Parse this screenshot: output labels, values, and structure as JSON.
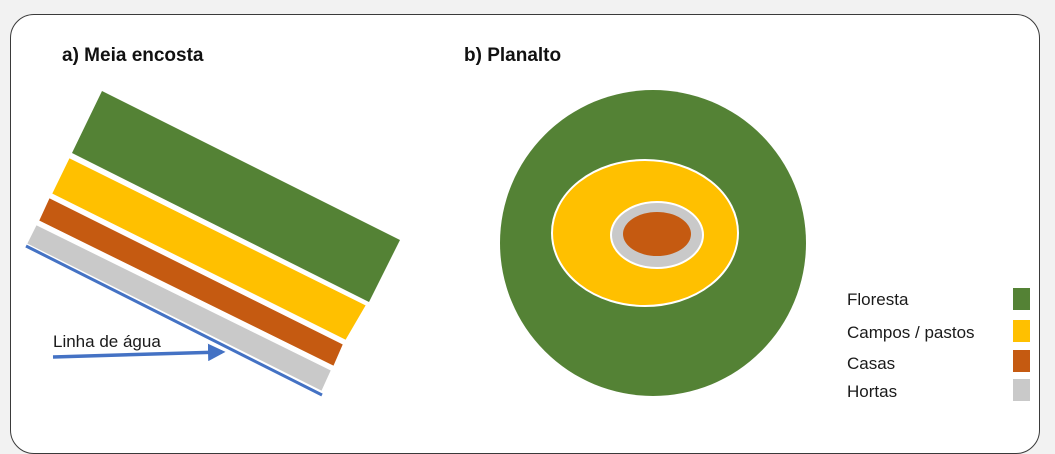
{
  "titles": {
    "meia_encosta": "a) Meia encosta",
    "planalto": "b) Planalto"
  },
  "water_line_label": "Linha de água",
  "legend": [
    {
      "label": "Floresta",
      "color": "#548235"
    },
    {
      "label": "Campos / pastos",
      "color": "#ffc000"
    },
    {
      "label": "Casas",
      "color": "#c55a11"
    },
    {
      "label": "Hortas",
      "color": "#c9c9c9"
    }
  ],
  "colors": {
    "water_line": "#4472c4",
    "band_outline": "#ffffff"
  }
}
